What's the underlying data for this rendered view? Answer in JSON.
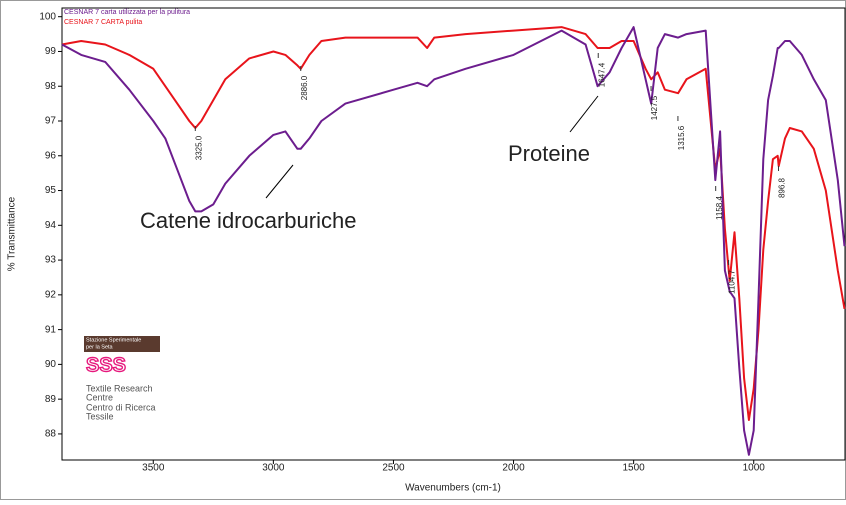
{
  "chart_data": {
    "type": "line",
    "xlabel": "Wavenumbers (cm-1)",
    "ylabel": "% Transmittance",
    "x": [
      3880,
      3800,
      3700,
      3600,
      3500,
      3450,
      3400,
      3350,
      3325,
      3300,
      3250,
      3200,
      3100,
      3000,
      2950,
      2900,
      2886,
      2850,
      2800,
      2700,
      2500,
      2400,
      2360,
      2330,
      2200,
      2000,
      1800,
      1700,
      1650,
      1600,
      1550,
      1500,
      1450,
      1427,
      1400,
      1370,
      1315,
      1280,
      1200,
      1160,
      1140,
      1120,
      1100,
      1080,
      1060,
      1040,
      1020,
      1000,
      980,
      960,
      940,
      920,
      900,
      896,
      870,
      850,
      800,
      750,
      700,
      650,
      622
    ],
    "series": [
      {
        "name": "CESNAR 7 carta utilizzata per la pulitura",
        "color": "#6c1d8e",
        "values": [
          99.2,
          98.9,
          98.7,
          97.9,
          97.0,
          96.5,
          95.6,
          94.7,
          94.4,
          94.4,
          94.6,
          95.2,
          96.0,
          96.6,
          96.7,
          96.2,
          96.2,
          96.5,
          97.0,
          97.5,
          97.9,
          98.1,
          98.0,
          98.2,
          98.5,
          98.9,
          99.6,
          99.2,
          98.0,
          98.4,
          99.1,
          99.7,
          98.2,
          97.5,
          99.1,
          99.5,
          99.4,
          99.5,
          99.6,
          95.3,
          96.7,
          92.7,
          92.1,
          91.9,
          89.9,
          88.1,
          87.4,
          88.1,
          91.9,
          95.9,
          97.6,
          98.3,
          99.1,
          99.1,
          99.3,
          99.3,
          98.9,
          98.2,
          97.6,
          95.3,
          93.4
        ]
      },
      {
        "name": "CESNAR 7 CARTA pulita",
        "color": "#e8141b",
        "values": [
          99.2,
          99.3,
          99.2,
          98.9,
          98.5,
          98.0,
          97.5,
          97.0,
          96.8,
          97.0,
          97.6,
          98.2,
          98.8,
          99.0,
          98.9,
          98.6,
          98.5,
          98.9,
          99.3,
          99.4,
          99.4,
          99.4,
          99.1,
          99.4,
          99.5,
          99.6,
          99.7,
          99.5,
          99.1,
          99.1,
          99.3,
          99.3,
          98.5,
          98.2,
          98.4,
          97.9,
          97.8,
          98.2,
          98.5,
          95.6,
          96.2,
          93.9,
          92.4,
          93.8,
          91.9,
          89.6,
          88.4,
          89.3,
          91.0,
          93.3,
          94.7,
          95.9,
          96.0,
          95.7,
          96.5,
          96.8,
          96.7,
          96.2,
          95.0,
          92.7,
          91.6
        ]
      }
    ],
    "xlim": [
      3880,
      620
    ],
    "ylim": [
      87.25,
      100.25
    ],
    "xticks": [
      3500,
      3000,
      2500,
      2000,
      1500,
      1000
    ],
    "yticks": [
      88,
      89,
      90,
      91,
      92,
      93,
      94,
      95,
      96,
      97,
      98,
      99,
      100
    ],
    "peaks": [
      {
        "value": 3325.0,
        "label": "3325.0"
      },
      {
        "value": 2886.0,
        "label": "2886.0"
      },
      {
        "value": 1647.4,
        "label": "1647.4"
      },
      {
        "value": 1427.5,
        "label": "1427.5"
      },
      {
        "value": 1315.6,
        "label": "1315.6"
      },
      {
        "value": 1158.4,
        "label": "1158.4"
      },
      {
        "value": 1104.7,
        "label": "1104.7"
      },
      {
        "value": 896.8,
        "label": "896.8"
      }
    ],
    "annotations": [
      "Proteine",
      "Catene idrocarburiche"
    ],
    "logo": {
      "box": [
        "Stazione Sperimentale",
        "per la Seta"
      ],
      "mark": "SSS",
      "lines": [
        "Textile Research",
        "Centre",
        "Centro di Ricerca",
        "Tessile"
      ]
    }
  }
}
